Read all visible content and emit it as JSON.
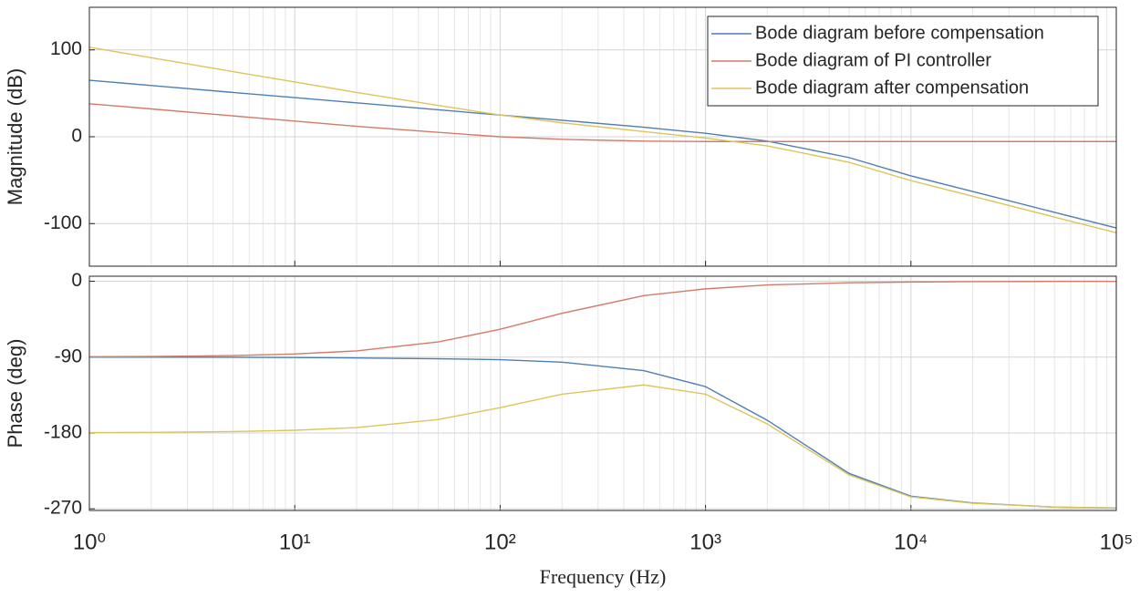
{
  "chart_data": [
    {
      "type": "line",
      "ylabel": "Magnitude (dB)",
      "xscale": "log",
      "grid": true,
      "legend": "upper right",
      "x": [
        1,
        2,
        5,
        10,
        20,
        50,
        100,
        200,
        500,
        1000,
        2000,
        5000,
        10000,
        20000,
        50000,
        100000
      ],
      "xlim": [
        1,
        100000
      ],
      "xticks": [
        1,
        10,
        100,
        1000,
        10000,
        100000
      ],
      "ylim": [
        -149,
        149
      ],
      "yticks": [
        -100,
        0,
        100
      ],
      "series": [
        {
          "name": "Bode diagram before compensation",
          "color": "#4d7fb5",
          "values": [
            65,
            59,
            51,
            45,
            39,
            31,
            25,
            19,
            11,
            4,
            -5,
            -24,
            -45,
            -63,
            -87,
            -105
          ]
        },
        {
          "name": "Bode diagram of PI controller",
          "color": "#d47a68",
          "values": [
            38,
            32,
            24,
            18,
            12,
            5,
            0,
            -3,
            -5,
            -5.5,
            -5.5,
            -5.5,
            -5.5,
            -5.5,
            -5.5,
            -5.5
          ]
        },
        {
          "name": "Bode diagram after compensation",
          "color": "#dcc55a",
          "values": [
            103,
            91,
            75,
            63,
            51,
            36,
            25,
            16,
            6,
            -1.5,
            -10.5,
            -29.5,
            -50.5,
            -68.5,
            -92.5,
            -110.5
          ]
        }
      ]
    },
    {
      "type": "line",
      "ylabel": "Phase (deg)",
      "xlabel": "Frequency (Hz)",
      "xscale": "log",
      "grid": true,
      "x": [
        1,
        2,
        5,
        10,
        20,
        50,
        100,
        200,
        500,
        1000,
        2000,
        5000,
        10000,
        20000,
        50000,
        100000
      ],
      "xlim": [
        1,
        100000
      ],
      "xticks": [
        {
          "value": 1,
          "label": "10⁰"
        },
        {
          "value": 10,
          "label": "10¹"
        },
        {
          "value": 100,
          "label": "10²"
        },
        {
          "value": 1000,
          "label": "10³"
        },
        {
          "value": 10000,
          "label": "10⁴"
        },
        {
          "value": 100000,
          "label": "10⁵"
        }
      ],
      "ylim": [
        -272,
        6
      ],
      "yticks": [
        -270,
        -180,
        -90,
        0
      ],
      "series": [
        {
          "color": "#4d7fb5",
          "values": [
            -90,
            -90,
            -90.2,
            -90.5,
            -91,
            -92,
            -93,
            -96,
            -106,
            -125,
            -165,
            -228,
            -255,
            -263,
            -268,
            -269
          ]
        },
        {
          "color": "#d47a68",
          "values": [
            -89.6,
            -89.3,
            -88.2,
            -86.3,
            -82.6,
            -72,
            -57,
            -38,
            -17,
            -9,
            -4.4,
            -1.8,
            -0.9,
            -0.4,
            -0.2,
            -0.1
          ]
        },
        {
          "color": "#dcc55a",
          "values": [
            -179.6,
            -179.3,
            -178.4,
            -176.8,
            -173.6,
            -164,
            -150,
            -134,
            -123,
            -134,
            -169.4,
            -229.8,
            -255.9,
            -263.4,
            -268,
            -269.1
          ]
        }
      ]
    }
  ]
}
